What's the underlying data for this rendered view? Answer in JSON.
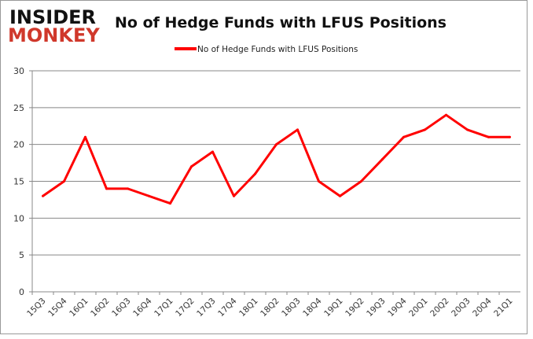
{
  "logo": {
    "line1": "INSIDER",
    "line2": "MONKEY",
    "colors": {
      "line1": "#111111",
      "line2": "#d0382b"
    }
  },
  "chart_data": {
    "type": "line",
    "title": "No of Hedge Funds with LFUS Positions",
    "categories": [
      "15Q3",
      "15Q4",
      "16Q1",
      "16Q2",
      "16Q3",
      "16Q4",
      "17Q1",
      "17Q2",
      "17Q3",
      "17Q4",
      "18Q1",
      "18Q2",
      "18Q3",
      "18Q4",
      "19Q1",
      "19Q2",
      "19Q3",
      "19Q4",
      "20Q1",
      "20Q2",
      "20Q3",
      "20Q4",
      "21Q1"
    ],
    "series": [
      {
        "name": "No of Hedge Funds with LFUS Positions",
        "color": "#ff0000",
        "values": [
          13,
          15,
          21,
          14,
          14,
          13,
          12,
          17,
          19,
          13,
          16,
          20,
          22,
          15,
          13,
          15,
          18,
          21,
          22,
          24,
          22,
          21,
          21
        ]
      }
    ],
    "ylim": [
      0,
      30
    ],
    "yticks": [
      0,
      5,
      10,
      15,
      20,
      25,
      30
    ],
    "grid": true,
    "legend": "top-center",
    "xlabel": "",
    "ylabel": ""
  }
}
